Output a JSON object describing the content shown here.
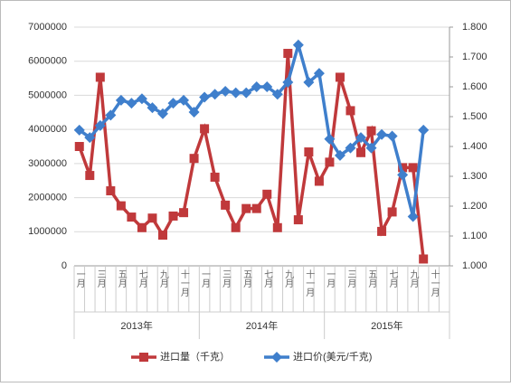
{
  "chart_data": {
    "type": "line",
    "categories": [
      "一月",
      null,
      "三月",
      null,
      "五月",
      null,
      "七月",
      null,
      "九月",
      null,
      "十一月",
      null,
      "一月",
      null,
      "三月",
      null,
      "五月",
      null,
      "七月",
      null,
      "九月",
      null,
      "十一月",
      null,
      "一月",
      null,
      "三月",
      null,
      "五月",
      null,
      "七月",
      null,
      "九月",
      null,
      "十一月",
      null
    ],
    "groups": [
      "2013年",
      "2014年",
      "2015年"
    ],
    "series": [
      {
        "name": "进口量（千克）",
        "color": "#c0393b",
        "values": [
          3500000,
          2650000,
          5530000,
          2200000,
          1760000,
          1430000,
          1120000,
          1400000,
          900000,
          1460000,
          1560000,
          3150000,
          4020000,
          2600000,
          1780000,
          1120000,
          1680000,
          1680000,
          2100000,
          1120000,
          6230000,
          1350000,
          3340000,
          2480000,
          3040000,
          5530000,
          4550000,
          3320000,
          3960000,
          1010000,
          1580000,
          2880000,
          2880000,
          200000,
          null,
          null
        ]
      },
      {
        "name": "进口价(美元/千克)",
        "color": "#3f7fcc",
        "axis": "y2",
        "values": [
          1.455,
          1.43,
          1.47,
          1.505,
          1.555,
          1.545,
          1.56,
          1.53,
          1.51,
          1.545,
          1.555,
          1.515,
          1.565,
          1.575,
          1.585,
          1.58,
          1.58,
          1.6,
          1.6,
          1.575,
          1.615,
          1.74,
          1.615,
          1.645,
          1.425,
          1.37,
          1.395,
          1.43,
          1.395,
          1.44,
          1.435,
          1.305,
          1.165,
          1.455,
          null,
          null
        ]
      }
    ],
    "ylim": [
      0,
      7000000
    ],
    "yticks": [
      0,
      1000000,
      2000000,
      3000000,
      4000000,
      5000000,
      6000000,
      7000000
    ],
    "y2lim": [
      1,
      1.8
    ],
    "y2ticks": [
      {
        "value": 1,
        "label": "1.000"
      },
      {
        "value": 1.1,
        "label": "1.100"
      },
      {
        "value": 1.2,
        "label": "1.200"
      },
      {
        "value": 1.3,
        "label": "1.300"
      },
      {
        "value": 1.4,
        "label": "1.400"
      },
      {
        "value": 1.5,
        "label": "1.500"
      },
      {
        "value": 1.6,
        "label": "1.600"
      },
      {
        "value": 1.7,
        "label": "1.700"
      },
      {
        "value": 1.8,
        "label": "1.800"
      }
    ],
    "grid": true,
    "legend": "bottom"
  }
}
